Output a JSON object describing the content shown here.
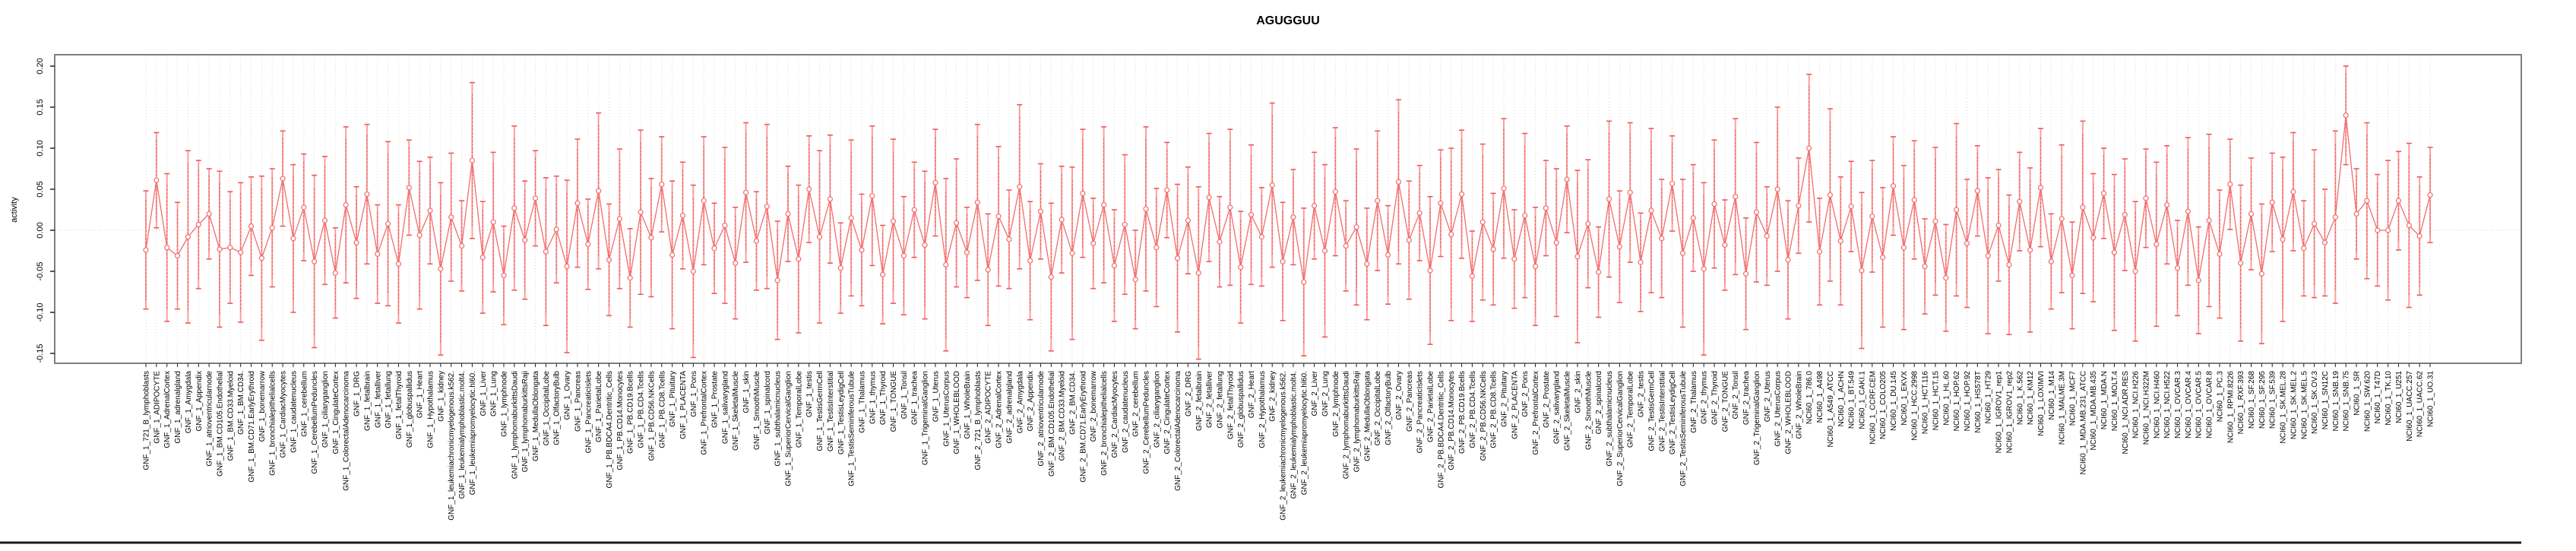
{
  "title": "AGUGGUU",
  "colors": {
    "point": "#f26d6d",
    "line": "#f26d6d",
    "errorbar_light": "#f8a09e",
    "errorbar_dashed": "#ee5a5a",
    "grid": "#d9d9d9",
    "zero_line": "#cfcfcf",
    "box": "#7f7f7f",
    "axis": "#222222",
    "text": "#000000",
    "bottom_rule": "#1a1a1a"
  },
  "chart_data": {
    "type": "scatter",
    "title": "AGUGGUU",
    "xlabel": "",
    "ylabel": "activity",
    "ylim": [
      -0.162,
      0.215
    ],
    "yticks": [
      0.2,
      0.15,
      0.1,
      0.05,
      0.0,
      -0.05,
      -0.1,
      -0.15
    ],
    "ytick_labels": [
      "0.20",
      "0.15",
      "0.10",
      "0.05",
      "0.00",
      "-0.05",
      "-0.10",
      "-0.15"
    ],
    "grid": "vertical-dotted-per-category",
    "zero_line": true,
    "legend": "none",
    "marker": "open-circle",
    "error_bars": true,
    "categories": [
      "GNF_1_721_B_lymphoblasts",
      "GNF_1_ADIPOCYTE",
      "GNF_1_AdrenalCortex",
      "GNF_1_adrenalgland",
      "GNF_1_Amygdala",
      "GNF_1_Appendix",
      "GNF_1_atrioventricularnode",
      "GNF_1_BM.CD105.Endothelial",
      "GNF_1_BM.CD33.Myeloid",
      "GNF_1_BM.CD34.",
      "GNF_1_BM.CD71.EarlyErythroid",
      "GNF_1_bonemarrow",
      "GNF_1_bronchialepithelialcells",
      "GNF_1_CardiacMyocytes",
      "GNF_1_caudatenucleus",
      "GNF_1_cerebellum",
      "GNF_1_CerebellumPeduncles",
      "GNF_1_ciliaryganglion",
      "GNF_1_CingulateCortex",
      "GNF_1_ColorectalAdenocarcinoma",
      "GNF_1_DRG",
      "GNF_1_fetalbrain",
      "GNF_1_fetalliver",
      "GNF_1_fetallung",
      "GNF_1_fetalThyroid",
      "GNF_1_globuspallidus",
      "GNF_1_Heart",
      "GNF_1_Hypothalamus",
      "GNF_1_kidney",
      "GNF_1_leukemiachronicmyelogenous.k562.",
      "GNF_1_leukemialymphoblastic.molt4.",
      "GNF_1_leukemiapromyelocytic.hl60.",
      "GNF_1_Liver",
      "GNF_1_Lung",
      "GNF_1_lymphnode",
      "GNF_1_lymphomaburkittsDaudi",
      "GNF_1_lymphomaburkittsRaji",
      "GNF_1_MedullaOblongata",
      "GNF_1_OccipitalLobe",
      "GNF_1_OlfactoryBulb",
      "GNF_1_Ovary",
      "GNF_1_Pancreas",
      "GNF_1_PancreaticIslets",
      "GNF_1_ParietalLobe",
      "GNF_1_PB.BDCA4.Dentritic_Cells",
      "GNF_1_PB.CD14.Monocytes",
      "GNF_1_PB.CD19.Bcells",
      "GNF_1_PB.CD4.Tcells",
      "GNF_1_PB.CD56.NKCells",
      "GNF_1_PB.CD8.Tcells",
      "GNF_1_Pituitary",
      "GNF_1_PLACENTA",
      "GNF_1_Pons",
      "GNF_1_PrefrontalCortex",
      "GNF_1_Prostate",
      "GNF_1_salivarygland",
      "GNF_1_SkeletalMuscle",
      "GNF_1_skin",
      "GNF_1_SmoothMuscle",
      "GNF_1_spinalcord",
      "GNF_1_subthalamicnucleus",
      "GNF_1_SuperiorCervicalGanglion",
      "GNF_1_TemporalLobe",
      "GNF_1_testis",
      "GNF_1_TestisGermCell",
      "GNF_1_TestisInterstitial",
      "GNF_1_TestisLeydigCell",
      "GNF_1_TestisSeminiferousTubule",
      "GNF_1_Thalamus",
      "GNF_1_thymus",
      "GNF_1_Thyroid",
      "GNF_1_TONGUE",
      "GNF_1_Tonsil",
      "GNF_1_trachea",
      "GNF_1_TrigeminalGanglion",
      "GNF_1_Uterus",
      "GNF_1_UterusCorpus",
      "GNF_1_WHOLEBLOOD",
      "GNF_1_WholeBrain",
      "GNF_2_721_B_lymphoblasts",
      "GNF_2_ADIPOCYTE",
      "GNF_2_AdrenalCortex",
      "GNF_2_adrenalgland",
      "GNF_2_Amygdala",
      "GNF_2_Appendix",
      "GNF_2_atrioventricularnode",
      "GNF_2_BM.CD105.Endothelial",
      "GNF_2_BM.CD33.Myeloid",
      "GNF_2_BM.CD34.",
      "GNF_2_BM.CD71.EarlyErythroid",
      "GNF_2_bonemarrow",
      "GNF_2_bronchialepithelialcells",
      "GNF_2_CardiacMyocytes",
      "GNF_2_caudatenucleus",
      "GNF_2_cerebellum",
      "GNF_2_CerebellumPeduncles",
      "GNF_2_ciliaryganglion",
      "GNF_2_CingulateCortex",
      "GNF_2_ColorectalAdenocarcinoma",
      "GNF_2_DRG",
      "GNF_2_fetalbrain",
      "GNF_2_fetalliver",
      "GNF_2_fetallung",
      "GNF_2_fetalThyroid",
      "GNF_2_globuspallidus",
      "GNF_2_Heart",
      "GNF_2_Hypothalamus",
      "GNF_2_kidney",
      "GNF_2_leukemiachronicmyelogenous.k562.",
      "GNF_2_leukemialymphoblastic.molt4.",
      "GNF_2_leukemiapromyelocytic.hl60.",
      "GNF_2_Liver",
      "GNF_2_Lung",
      "GNF_2_lymphnode",
      "GNF_2_lymphomaburkittsDaudi",
      "GNF_2_lymphomaburkittsRaji",
      "GNF_2_MedullaOblongata",
      "GNF_2_OccipitalLobe",
      "GNF_2_OlfactoryBulb",
      "GNF_2_Ovary",
      "GNF_2_Pancreas",
      "GNF_2_PancreaticIslets",
      "GNF_2_ParietalLobe",
      "GNF_2_PB.BDCA4.Dentritic_Cells",
      "GNF_2_PB.CD14.Monocytes",
      "GNF_2_PB.CD19.Bcells",
      "GNF_2_PB.CD4.Tcells",
      "GNF_2_PB.CD56.NKCells",
      "GNF_2_PB.CD8.Tcells",
      "GNF_2_Pituitary",
      "GNF_2_PLACENTA",
      "GNF_2_Pons",
      "GNF_2_PrefrontalCortex",
      "GNF_2_Prostate",
      "GNF_2_salivarygland",
      "GNF_2_SkeletalMuscle",
      "GNF_2_skin",
      "GNF_2_SmoothMuscle",
      "GNF_2_spinalcord",
      "GNF_2_subthalamicnucleus",
      "GNF_2_SuperiorCervicalGanglion",
      "GNF_2_TemporalLobe",
      "GNF_2_testis",
      "GNF_2_TestisGermCell",
      "GNF_2_TestisInterstitial",
      "GNF_2_TestisLeydigCell",
      "GNF_2_TestisSeminiferousTubule",
      "GNF_2_Thalamus",
      "GNF_2_thymus",
      "GNF_2_Thyroid",
      "GNF_2_TONGUE",
      "GNF_2_Tonsil",
      "GNF_2_trachea",
      "GNF_2_TrigeminalGanglion",
      "GNF_2_Uterus",
      "GNF_2_UterusCorpus",
      "GNF_2_WHOLEBLOOD",
      "GNF_2_WholeBrain",
      "NCI60_1_786.0",
      "NCI60_1_A498",
      "NCI60_1_A549_ATCC",
      "NCI60_1_ACHN",
      "NCI60_1_BT.549",
      "NCI60_1_CAKI.1",
      "NCI60_1_CCRF.CEM",
      "NCI60_1_COLO205",
      "NCI60_1_DU.145",
      "NCI60_1_EKVX",
      "NCI60_1_HCC.2998",
      "NCI60_1_HCT.116",
      "NCI60_1_HCT.15",
      "NCI60_1_HL.60",
      "NCI60_1_HOP.62",
      "NCI60_1_HOP.92",
      "NCI60_1_HS578T",
      "NCI60_1_HT29",
      "NCI60_1_IGROV1_rep1",
      "NCI60_1_IGROV1_rep2",
      "NCI60_1_K.562",
      "NCI60_1_KM12",
      "NCI60_1_LOXIMVI",
      "NCI60_1_M14",
      "NCI60_1_MALME.3M",
      "NCI60_1_MCF7",
      "NCI60_1_MDA.MB.231_ATCC",
      "NCI60_1_MDA.MB.435",
      "NCI60_1_MDA.N",
      "NCI60_1_MOLT.4",
      "NCI60_1_NCI.ADR.RES",
      "NCI60_1_NCI.H226",
      "NCI60_1_NCI.H322M",
      "NCI60_1_NCI.H460",
      "NCI60_1_NCI.H522",
      "NCI60_1_OVCAR.3",
      "NCI60_1_OVCAR.4",
      "NCI60_1_OVCAR.5",
      "NCI60_1_OVCAR.8",
      "NCI60_1_PC.3",
      "NCI60_1_RPMI.8226",
      "NCI60_1_RXF.393",
      "NCI60_1_SF.268",
      "NCI60_1_SF.295",
      "NCI60_1_SF.539",
      "NCI60_1_SK.MEL.28",
      "NCI60_1_SK.MEL.2",
      "NCI60_1_SK.MEL.5",
      "NCI60_1_SK.OV.3",
      "NCI60_1_SN12C",
      "NCI60_1_SNB.19",
      "NCI60_1_SNB.75",
      "NCI60_1_SR",
      "NCI60_1_SW.620",
      "NCI60_1_T47D",
      "NCI60_1_TK.10",
      "NCI60_1_U251",
      "NCI60_1_UACC.257",
      "NCI60_1_UACC.62",
      "NCI60_1_UO.31"
    ],
    "values": [
      -0.024,
      0.061,
      -0.021,
      -0.031,
      -0.008,
      0.007,
      0.02,
      -0.023,
      -0.021,
      -0.027,
      0.005,
      -0.034,
      0.003,
      0.063,
      -0.01,
      0.028,
      -0.038,
      0.012,
      -0.052,
      0.031,
      -0.015,
      0.044,
      -0.029,
      0.008,
      -0.041,
      0.052,
      -0.006,
      0.024,
      -0.047,
      0.016,
      -0.019,
      0.085,
      -0.033,
      0.01,
      -0.055,
      0.027,
      -0.012,
      0.039,
      -0.026,
      0.001,
      -0.044,
      0.033,
      -0.017,
      0.048,
      -0.036,
      0.014,
      -0.058,
      0.022,
      -0.009,
      0.056,
      -0.03,
      0.018,
      -0.05,
      0.036,
      -0.022,
      0.006,
      -0.04,
      0.046,
      -0.013,
      0.029,
      -0.061,
      0.02,
      -0.035,
      0.05,
      -0.008,
      0.038,
      -0.046,
      0.015,
      -0.024,
      0.042,
      -0.054,
      0.011,
      -0.031,
      0.025,
      -0.018,
      0.058,
      -0.042,
      0.009,
      -0.027,
      0.034,
      -0.048,
      0.017,
      -0.011,
      0.053,
      -0.037,
      0.023,
      -0.057,
      0.013,
      -0.028,
      0.045,
      -0.016,
      0.031,
      -0.043,
      0.007,
      -0.06,
      0.026,
      -0.021,
      0.049,
      -0.034,
      0.012,
      -0.052,
      0.04,
      -0.014,
      0.028,
      -0.045,
      0.019,
      -0.008,
      0.055,
      -0.038,
      0.016,
      -0.063,
      0.03,
      -0.025,
      0.047,
      -0.019,
      0.004,
      -0.041,
      0.036,
      -0.03,
      0.059,
      -0.012,
      0.021,
      -0.049,
      0.033,
      -0.005,
      0.044,
      -0.056,
      0.01,
      -0.023,
      0.051,
      -0.035,
      0.018,
      -0.044,
      0.027,
      -0.015,
      0.062,
      -0.032,
      0.008,
      -0.051,
      0.038,
      -0.02,
      0.046,
      -0.039,
      0.024,
      -0.01,
      0.057,
      -0.028,
      0.015,
      -0.047,
      0.032,
      -0.018,
      0.041,
      -0.053,
      0.022,
      -0.007,
      0.05,
      -0.036,
      0.03,
      0.1,
      -0.026,
      0.043,
      -0.013,
      0.029,
      -0.049,
      0.017,
      -0.033,
      0.054,
      -0.021,
      0.037,
      -0.044,
      0.011,
      -0.058,
      0.025,
      -0.016,
      0.048,
      -0.031,
      0.006,
      -0.042,
      0.035,
      -0.024,
      0.052,
      -0.038,
      0.014,
      -0.055,
      0.028,
      -0.009,
      0.045,
      -0.027,
      0.019,
      -0.05,
      0.039,
      -0.017,
      0.031,
      -0.046,
      0.023,
      -0.061,
      0.012,
      -0.029,
      0.056,
      -0.04,
      0.02,
      -0.053,
      0.034,
      -0.011,
      0.047,
      -0.022,
      0.008,
      -0.015,
      0.016,
      0.14,
      0.02,
      0.036,
      0.0,
      0.0,
      0.036,
      0.006,
      -0.007,
      0.043
    ],
    "errors": [
      0.072,
      0.058,
      0.09,
      0.065,
      0.105,
      0.078,
      0.055,
      0.095,
      0.068,
      0.085,
      0.06,
      0.1,
      0.072,
      0.058,
      0.09,
      0.065,
      0.105,
      0.078,
      0.055,
      0.095,
      0.068,
      0.085,
      0.06,
      0.1,
      0.072,
      0.058,
      0.09,
      0.065,
      0.105,
      0.078,
      0.055,
      0.095,
      0.068,
      0.085,
      0.06,
      0.1,
      0.072,
      0.058,
      0.09,
      0.065,
      0.105,
      0.078,
      0.055,
      0.095,
      0.068,
      0.085,
      0.06,
      0.1,
      0.072,
      0.058,
      0.09,
      0.065,
      0.105,
      0.078,
      0.055,
      0.095,
      0.068,
      0.085,
      0.06,
      0.1,
      0.072,
      0.058,
      0.09,
      0.065,
      0.105,
      0.078,
      0.055,
      0.095,
      0.068,
      0.085,
      0.06,
      0.1,
      0.072,
      0.058,
      0.09,
      0.065,
      0.105,
      0.078,
      0.055,
      0.095,
      0.068,
      0.085,
      0.06,
      0.1,
      0.072,
      0.058,
      0.09,
      0.065,
      0.105,
      0.078,
      0.055,
      0.095,
      0.068,
      0.085,
      0.06,
      0.1,
      0.072,
      0.058,
      0.09,
      0.065,
      0.105,
      0.078,
      0.055,
      0.095,
      0.068,
      0.085,
      0.06,
      0.1,
      0.072,
      0.058,
      0.09,
      0.065,
      0.105,
      0.078,
      0.055,
      0.095,
      0.068,
      0.085,
      0.06,
      0.1,
      0.072,
      0.058,
      0.09,
      0.065,
      0.105,
      0.078,
      0.055,
      0.095,
      0.068,
      0.085,
      0.06,
      0.1,
      0.072,
      0.058,
      0.09,
      0.065,
      0.105,
      0.078,
      0.055,
      0.095,
      0.068,
      0.085,
      0.06,
      0.1,
      0.072,
      0.058,
      0.09,
      0.065,
      0.105,
      0.078,
      0.055,
      0.095,
      0.068,
      0.085,
      0.06,
      0.1,
      0.072,
      0.058,
      0.09,
      0.065,
      0.105,
      0.078,
      0.055,
      0.095,
      0.068,
      0.085,
      0.06,
      0.1,
      0.072,
      0.058,
      0.09,
      0.065,
      0.105,
      0.078,
      0.055,
      0.095,
      0.068,
      0.085,
      0.06,
      0.1,
      0.072,
      0.058,
      0.09,
      0.065,
      0.105,
      0.078,
      0.055,
      0.095,
      0.068,
      0.085,
      0.06,
      0.1,
      0.072,
      0.058,
      0.09,
      0.065,
      0.105,
      0.078,
      0.055,
      0.095,
      0.068,
      0.085,
      0.06,
      0.1,
      0.072,
      0.058,
      0.09,
      0.065,
      0.105,
      0.06,
      0.055,
      0.095,
      0.068,
      0.085,
      0.06,
      0.1,
      0.072,
      0.058
    ]
  }
}
